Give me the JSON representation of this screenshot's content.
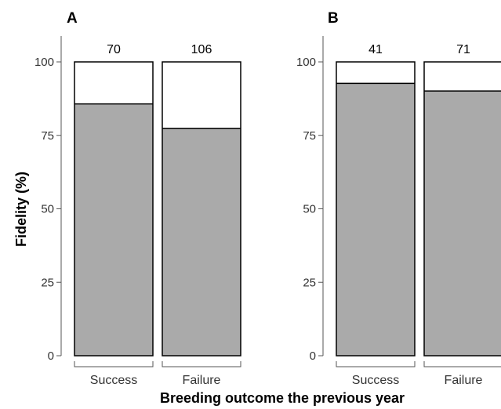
{
  "chart_data": {
    "type": "bar",
    "ylabel": "Fidelity (%)",
    "xlabel": "Breeding outcome the previous year",
    "ylim": [
      0,
      100
    ],
    "yticks": [
      "0",
      "25",
      "50",
      "75",
      "100"
    ],
    "colors": {
      "fidelity": "#aaaaaa",
      "remainder": "#ffffff",
      "outline": "#000000"
    },
    "panels": [
      {
        "label": "A",
        "categories": [
          "Success",
          "Failure"
        ],
        "values": [
          85.7,
          77.4
        ],
        "sample_sizes": [
          "70",
          "106"
        ]
      },
      {
        "label": "B",
        "categories": [
          "Success",
          "Failure"
        ],
        "values": [
          92.7,
          90.1
        ],
        "sample_sizes": [
          "41",
          "71"
        ]
      }
    ]
  }
}
